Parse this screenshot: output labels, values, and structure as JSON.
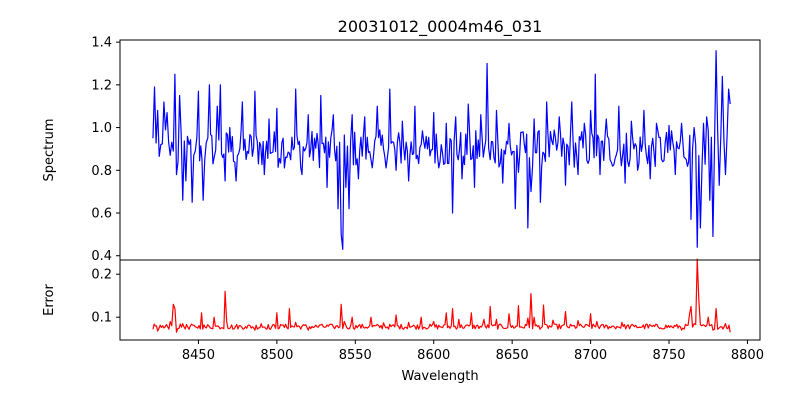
{
  "chart_data": {
    "type": "line",
    "title": "20031012_0004m46_031",
    "xlabel": "Wavelength",
    "xlim": [
      8400,
      8808
    ],
    "xticks": [
      8450,
      8500,
      8550,
      8600,
      8650,
      8700,
      8750,
      8800
    ],
    "x_range": [
      8421,
      8789
    ],
    "grid": false,
    "legend": "none",
    "panels": [
      {
        "name": "Spectrum",
        "ylabel": "Spectrum",
        "ylim": [
          0.38,
          1.41
        ],
        "yticks": [
          0.4,
          0.6,
          0.8,
          1.0,
          1.2,
          1.4
        ],
        "ytick_labels": [
          "0.4",
          "0.6",
          "0.8",
          "1.0",
          "1.2",
          "1.4"
        ],
        "color": "#0000ff",
        "baseline": 0.9,
        "spikes": [
          [
            8421,
            0.95
          ],
          [
            8422,
            1.19
          ],
          [
            8424,
            1.08
          ],
          [
            8426,
            0.92
          ],
          [
            8428,
            1.12
          ],
          [
            8430,
            1.07
          ],
          [
            8432,
            0.87
          ],
          [
            8434,
            0.89
          ],
          [
            8435,
            1.25
          ],
          [
            8436,
            0.78
          ],
          [
            8438,
            1.15
          ],
          [
            8440,
            0.66
          ],
          [
            8442,
            0.75
          ],
          [
            8444,
            0.92
          ],
          [
            8446,
            0.65
          ],
          [
            8448,
            0.89
          ],
          [
            8450,
            1.17
          ],
          [
            8453,
            0.66
          ],
          [
            8455,
            0.93
          ],
          [
            8457,
            1.2
          ],
          [
            8460,
            0.86
          ],
          [
            8462,
            1.1
          ],
          [
            8464,
            1.2
          ],
          [
            8467,
            0.75
          ],
          [
            8470,
            1.0
          ],
          [
            8474,
            0.75
          ],
          [
            8478,
            1.12
          ],
          [
            8482,
            0.88
          ],
          [
            8486,
            1.17
          ],
          [
            8489,
            0.93
          ],
          [
            8492,
            0.78
          ],
          [
            8495,
            1.04
          ],
          [
            8500,
            1.09
          ],
          [
            8504,
            0.95
          ],
          [
            8508,
            0.88
          ],
          [
            8512,
            1.18
          ],
          [
            8516,
            0.78
          ],
          [
            8520,
            1.06
          ],
          [
            8524,
            0.95
          ],
          [
            8528,
            1.15
          ],
          [
            8532,
            0.72
          ],
          [
            8536,
            1.06
          ],
          [
            8539,
            0.62
          ],
          [
            8541,
            0.5
          ],
          [
            8542,
            0.43
          ],
          [
            8544,
            0.72
          ],
          [
            8546,
            0.62
          ],
          [
            8548,
            1.06
          ],
          [
            8552,
            0.76
          ],
          [
            8556,
            1.05
          ],
          [
            8560,
            0.85
          ],
          [
            8564,
            1.1
          ],
          [
            8568,
            0.9
          ],
          [
            8572,
            1.18
          ],
          [
            8576,
            0.8
          ],
          [
            8580,
            1.03
          ],
          [
            8584,
            0.75
          ],
          [
            8588,
            1.1
          ],
          [
            8592,
            0.92
          ],
          [
            8596,
            0.9
          ],
          [
            8600,
            1.07
          ],
          [
            8604,
            0.84
          ],
          [
            8608,
            1.02
          ],
          [
            8612,
            0.6
          ],
          [
            8614,
            1.05
          ],
          [
            8618,
            0.76
          ],
          [
            8622,
            1.11
          ],
          [
            8626,
            0.72
          ],
          [
            8630,
            1.06
          ],
          [
            8634,
            1.3
          ],
          [
            8636,
            0.85
          ],
          [
            8640,
            1.08
          ],
          [
            8644,
            0.74
          ],
          [
            8648,
            1.02
          ],
          [
            8652,
            0.62
          ],
          [
            8654,
            0.79
          ],
          [
            8657,
            0.98
          ],
          [
            8660,
            0.53
          ],
          [
            8662,
            0.7
          ],
          [
            8664,
            1.04
          ],
          [
            8668,
            0.65
          ],
          [
            8672,
            1.12
          ],
          [
            8676,
            0.92
          ],
          [
            8680,
            1.05
          ],
          [
            8684,
            0.73
          ],
          [
            8688,
            1.12
          ],
          [
            8692,
            0.78
          ],
          [
            8696,
            1.02
          ],
          [
            8700,
            1.08
          ],
          [
            8703,
            1.25
          ],
          [
            8706,
            0.78
          ],
          [
            8710,
            1.04
          ],
          [
            8714,
            0.82
          ],
          [
            8718,
            1.1
          ],
          [
            8722,
            0.74
          ],
          [
            8726,
            1.03
          ],
          [
            8730,
            0.8
          ],
          [
            8734,
            1.08
          ],
          [
            8738,
            0.76
          ],
          [
            8742,
            1.02
          ],
          [
            8746,
            0.84
          ],
          [
            8750,
            1.01
          ],
          [
            8754,
            0.78
          ],
          [
            8758,
            1.02
          ],
          [
            8761,
            0.85
          ],
          [
            8764,
            0.57
          ],
          [
            8766,
            1.0
          ],
          [
            8767,
            0.92
          ],
          [
            8768,
            0.44
          ],
          [
            8770,
            0.53
          ],
          [
            8772,
            1.02
          ],
          [
            8774,
            1.05
          ],
          [
            8776,
            0.66
          ],
          [
            8778,
            0.49
          ],
          [
            8780,
            1.36
          ],
          [
            8782,
            0.73
          ],
          [
            8784,
            1.24
          ],
          [
            8786,
            0.78
          ],
          [
            8788,
            1.18
          ],
          [
            8789,
            1.11
          ]
        ]
      },
      {
        "name": "Error",
        "ylabel": "Error",
        "ylim": [
          0.047,
          0.233
        ],
        "yticks": [
          0.1,
          0.2
        ],
        "ytick_labels": [
          "0.1",
          "0.2"
        ],
        "color": "#ff0000",
        "baseline": 0.078,
        "spikes": [
          [
            8421,
            0.072
          ],
          [
            8424,
            0.068
          ],
          [
            8428,
            0.075
          ],
          [
            8432,
            0.09
          ],
          [
            8434,
            0.13
          ],
          [
            8435,
            0.12
          ],
          [
            8436,
            0.065
          ],
          [
            8440,
            0.085
          ],
          [
            8444,
            0.072
          ],
          [
            8448,
            0.078
          ],
          [
            8452,
            0.11
          ],
          [
            8455,
            0.075
          ],
          [
            8460,
            0.1
          ],
          [
            8463,
            0.078
          ],
          [
            8467,
            0.16
          ],
          [
            8468,
            0.09
          ],
          [
            8472,
            0.072
          ],
          [
            8480,
            0.078
          ],
          [
            8486,
            0.07
          ],
          [
            8490,
            0.085
          ],
          [
            8496,
            0.072
          ],
          [
            8500,
            0.11
          ],
          [
            8504,
            0.082
          ],
          [
            8508,
            0.12
          ],
          [
            8512,
            0.088
          ],
          [
            8520,
            0.07
          ],
          [
            8528,
            0.082
          ],
          [
            8536,
            0.078
          ],
          [
            8541,
            0.13
          ],
          [
            8543,
            0.09
          ],
          [
            8548,
            0.1
          ],
          [
            8552,
            0.08
          ],
          [
            8560,
            0.1
          ],
          [
            8568,
            0.087
          ],
          [
            8576,
            0.105
          ],
          [
            8584,
            0.088
          ],
          [
            8592,
            0.1
          ],
          [
            8600,
            0.09
          ],
          [
            8608,
            0.11
          ],
          [
            8612,
            0.12
          ],
          [
            8616,
            0.095
          ],
          [
            8624,
            0.11
          ],
          [
            8632,
            0.095
          ],
          [
            8636,
            0.125
          ],
          [
            8640,
            0.095
          ],
          [
            8648,
            0.108
          ],
          [
            8654,
            0.127
          ],
          [
            8660,
            0.098
          ],
          [
            8662,
            0.155
          ],
          [
            8664,
            0.1
          ],
          [
            8670,
            0.128
          ],
          [
            8676,
            0.093
          ],
          [
            8684,
            0.113
          ],
          [
            8692,
            0.092
          ],
          [
            8700,
            0.108
          ],
          [
            8704,
            0.09
          ],
          [
            8712,
            0.078
          ],
          [
            8720,
            0.088
          ],
          [
            8728,
            0.078
          ],
          [
            8736,
            0.084
          ],
          [
            8744,
            0.074
          ],
          [
            8752,
            0.077
          ],
          [
            8758,
            0.07
          ],
          [
            8763,
            0.105
          ],
          [
            8764,
            0.125
          ],
          [
            8766,
            0.085
          ],
          [
            8768,
            0.235
          ],
          [
            8769,
            0.14
          ],
          [
            8771,
            0.08
          ],
          [
            8775,
            0.1
          ],
          [
            8778,
            0.07
          ],
          [
            8780,
            0.12
          ],
          [
            8782,
            0.075
          ],
          [
            8786,
            0.085
          ],
          [
            8789,
            0.065
          ]
        ]
      }
    ]
  }
}
